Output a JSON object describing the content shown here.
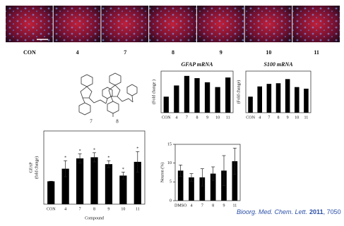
{
  "images": {
    "labels": [
      "CON",
      "4",
      "7",
      "8",
      "9",
      "10",
      "11"
    ]
  },
  "structures": {
    "labels": [
      "7",
      "8"
    ]
  },
  "chart_data": [
    {
      "type": "bar",
      "title": "GFAP mRNA",
      "y_label": [
        "(Fold change )"
      ],
      "color": "#000000",
      "categories": [
        "CON",
        "4",
        "7",
        "8",
        "9",
        "10",
        "11"
      ],
      "values": [
        1.0,
        1.35,
        1.65,
        1.58,
        1.45,
        1.3,
        1.6
      ],
      "ylim": [
        0.5,
        1.8
      ]
    },
    {
      "type": "bar",
      "title": "S100 mRNA",
      "y_label": [
        "(Fold change)"
      ],
      "color": "#000000",
      "categories": [
        "CON",
        "4",
        "7",
        "8",
        "9",
        "10",
        "11"
      ],
      "values": [
        1.0,
        1.32,
        1.4,
        1.42,
        1.55,
        1.3,
        1.25
      ],
      "ylim": [
        0.5,
        1.8
      ]
    },
    {
      "type": "bar",
      "y_label": [
        "GFAP",
        "(fold change)"
      ],
      "x_label": "Compound",
      "color": "#000000",
      "categories": [
        "CON",
        "4",
        "7",
        "8",
        "9",
        "10",
        "11"
      ],
      "values": [
        1.0,
        1.55,
        2.0,
        2.05,
        1.75,
        1.25,
        1.85
      ],
      "errors": [
        0.0,
        0.35,
        0.2,
        0.2,
        0.15,
        0.15,
        0.45
      ],
      "annotations": [
        null,
        "*",
        "*",
        "*",
        "*",
        "*",
        "*"
      ],
      "ylim": [
        0,
        3.2
      ]
    },
    {
      "type": "bar",
      "y_label": [
        "Neuron (%)"
      ],
      "color": "#000000",
      "categories": [
        "DMSO",
        "4",
        "7",
        "8",
        "9",
        "11"
      ],
      "values": [
        8,
        6.2,
        6.2,
        7.2,
        8,
        10.5
      ],
      "errors": [
        1.5,
        1.0,
        2.3,
        1.8,
        4,
        3.5
      ],
      "ylim": [
        0,
        15
      ],
      "yticks": [
        0,
        5,
        10,
        15
      ]
    }
  ],
  "citation": {
    "journal": "Bioorg. Med. Chem. Lett.",
    "year": "2011",
    "pages": ", 7050"
  }
}
